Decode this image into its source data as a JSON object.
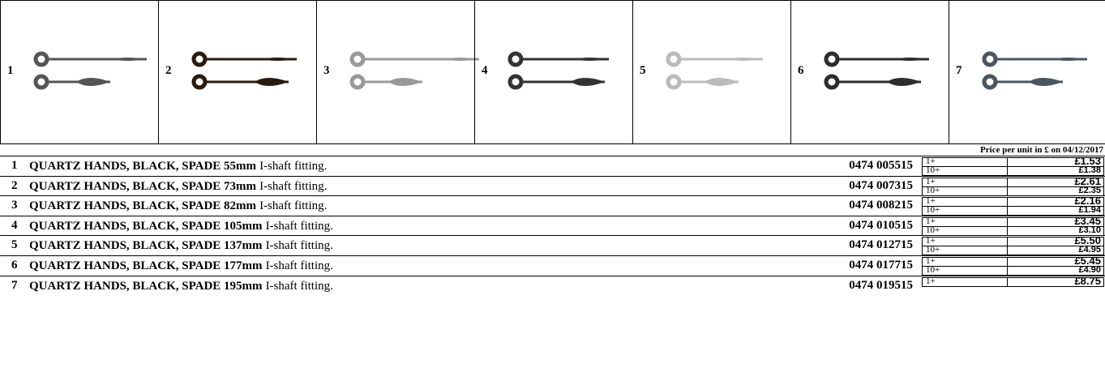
{
  "image_labels": [
    "1",
    "2",
    "3",
    "4",
    "5",
    "6",
    "7"
  ],
  "price_note": "Price per unit in £ on 04/12/2017",
  "products": [
    {
      "number": "1",
      "name": "QUARTZ HANDS, BLACK, SPADE 55mm",
      "description": "I-shaft fitting.",
      "code": "0474 005515",
      "prices": [
        {
          "qty": "1+",
          "price": "£1.53"
        },
        {
          "qty": "10+",
          "price": "£1.38"
        }
      ]
    },
    {
      "number": "2",
      "name": "QUARTZ HANDS, BLACK, SPADE 73mm",
      "description": "I-shaft fitting.",
      "code": "0474 007315",
      "prices": [
        {
          "qty": "1+",
          "price": "£2.61"
        },
        {
          "qty": "10+",
          "price": "£2.35"
        }
      ]
    },
    {
      "number": "3",
      "name": "QUARTZ HANDS, BLACK, SPADE 82mm",
      "description": "I-shaft fitting.",
      "code": "0474 008215",
      "prices": [
        {
          "qty": "1+",
          "price": "£2.16"
        },
        {
          "qty": "10+",
          "price": "£1.94"
        }
      ]
    },
    {
      "number": "4",
      "name": "QUARTZ HANDS, BLACK, SPADE 105mm",
      "description": "I-shaft fitting.",
      "code": "0474 010515",
      "prices": [
        {
          "qty": "1+",
          "price": "£3.45"
        },
        {
          "qty": "10+",
          "price": "£3.10"
        }
      ]
    },
    {
      "number": "5",
      "name": "QUARTZ HANDS, BLACK, SPADE 137mm",
      "description": "I-shaft fitting.",
      "code": "0474 012715",
      "prices": [
        {
          "qty": "1+",
          "price": "£5.50"
        },
        {
          "qty": "10+",
          "price": "£4.95"
        }
      ]
    },
    {
      "number": "6",
      "name": "QUARTZ HANDS, BLACK, SPADE 177mm",
      "description": "I-shaft fitting.",
      "code": "0474 017715",
      "prices": [
        {
          "qty": "1+",
          "price": "£5.45"
        },
        {
          "qty": "10+",
          "price": "£4.90"
        }
      ]
    },
    {
      "number": "7",
      "name": "QUARTZ HANDS, BLACK, SPADE 195mm",
      "description": "I-shaft fitting.",
      "code": "0474 019515",
      "prices": [
        {
          "qty": "1+",
          "price": "£8.75"
        }
      ]
    }
  ]
}
